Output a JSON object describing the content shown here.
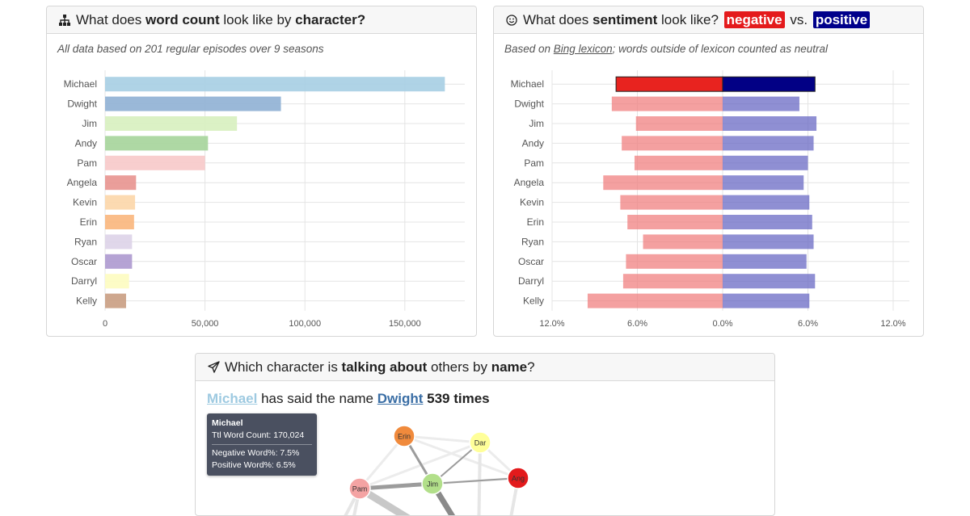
{
  "word_card": {
    "title_pre": "What does ",
    "title_bold1": "word count",
    "title_mid": " look like by ",
    "title_bold2": "character?",
    "icon": "sitemap-icon",
    "subtitle": "All data based on 201 regular episodes over 9 seasons"
  },
  "sentiment_card": {
    "title_pre": "What does ",
    "title_bold1": "sentiment",
    "title_mid": " look like? ",
    "neg_label": "negative",
    "vs": "vs.",
    "pos_label": "positive",
    "icon": "smile-icon",
    "subtitle_pre": "Based on ",
    "subtitle_link": "Bing lexicon",
    "subtitle_post": "; words outside of lexicon counted as neutral"
  },
  "names_card": {
    "title_pre": "Which character is ",
    "title_bold1": "talking about",
    "title_mid": " others by ",
    "title_bold2": "name",
    "title_post": "?",
    "icon": "send-icon",
    "speaker": "Michael",
    "said_text": "has said the name",
    "target": "Dwight",
    "count_text": "539 times",
    "speaker_color": "#9ecae1",
    "target_color": "#3a6ea5",
    "tooltip": {
      "name": "Michael",
      "word_count": "Ttl Word Count: 170,024",
      "neg": "Negative Word%: 7.5%",
      "pos": "Positive Word%: 6.5%"
    },
    "nodes": [
      {
        "label": "Erin",
        "color": "#f08a3c"
      },
      {
        "label": "Dar",
        "color": "#ffff99"
      },
      {
        "label": "Jim",
        "color": "#b2df8a"
      },
      {
        "label": "Ang",
        "color": "#e31a1c"
      },
      {
        "label": "Pam",
        "color": "#f4a3a3"
      }
    ]
  },
  "chart_data": [
    {
      "type": "bar",
      "orientation": "horizontal",
      "categories": [
        "Michael",
        "Dwight",
        "Jim",
        "Andy",
        "Pam",
        "Angela",
        "Kevin",
        "Erin",
        "Ryan",
        "Oscar",
        "Darryl",
        "Kelly"
      ],
      "values": [
        170024,
        88000,
        66000,
        51500,
        50000,
        15500,
        15000,
        14500,
        13500,
        13500,
        12000,
        10500
      ],
      "colors": [
        "#a6cee3",
        "#8fb0d4",
        "#d7efbf",
        "#a5d49a",
        "#f7c9c9",
        "#e8938f",
        "#fcd6a8",
        "#fab67c",
        "#ddd3e8",
        "#ad99cf",
        "#fdfcc0",
        "#c99d82"
      ],
      "xlim": [
        0,
        180000
      ],
      "xticks": [
        0,
        50000,
        100000,
        150000
      ],
      "xtick_labels": [
        "0",
        "50,000",
        "100,000",
        "150,000"
      ],
      "grid": true
    },
    {
      "type": "bar",
      "orientation": "horizontal-diverging",
      "categories": [
        "Michael",
        "Dwight",
        "Jim",
        "Andy",
        "Pam",
        "Angela",
        "Kevin",
        "Erin",
        "Ryan",
        "Oscar",
        "Darryl",
        "Kelly"
      ],
      "series": [
        {
          "name": "negative",
          "values": [
            7.5,
            7.8,
            6.1,
            7.1,
            6.2,
            8.4,
            7.2,
            6.7,
            5.6,
            6.8,
            7.0,
            9.5
          ],
          "color": "#f08080"
        },
        {
          "name": "positive",
          "values": [
            6.5,
            5.4,
            6.6,
            6.4,
            6.0,
            5.7,
            6.1,
            6.3,
            6.4,
            5.9,
            6.5,
            6.1
          ],
          "color": "#6a6ac4"
        }
      ],
      "highlight_colors": {
        "negative": "#e8231f",
        "positive": "#020085"
      },
      "highlight_category": "Michael",
      "xlim": [
        -12,
        12
      ],
      "xticks": [
        -12,
        -6,
        0,
        6,
        12
      ],
      "xtick_labels": [
        "12.0%",
        "6.0%",
        "0.0%",
        "6.0%",
        "12.0%"
      ],
      "grid": true
    }
  ]
}
